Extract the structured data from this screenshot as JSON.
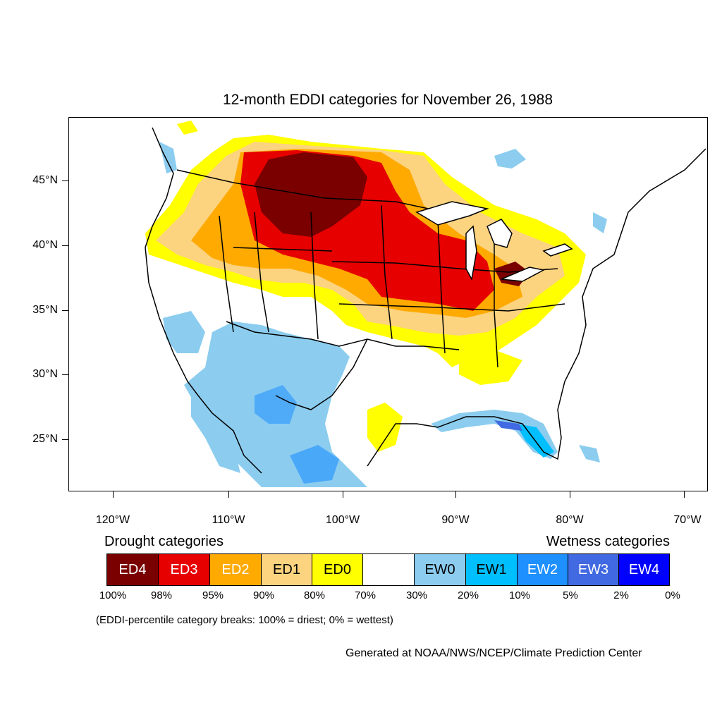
{
  "title": "12-month EDDI categories for November 26, 1988",
  "lat_labels": [
    "45°N",
    "40°N",
    "35°N",
    "30°N",
    "25°N"
  ],
  "lon_labels": [
    "120°W",
    "110°W",
    "100°W",
    "90°W",
    "80°W",
    "70°W"
  ],
  "legend": {
    "drought_title": "Drought categories",
    "wetness_title": "Wetness categories",
    "categories": [
      {
        "label": "ED4",
        "color": "#7a0000",
        "text_color": "#ffffff"
      },
      {
        "label": "ED3",
        "color": "#e60000",
        "text_color": "#ffffff"
      },
      {
        "label": "ED2",
        "color": "#ffaa00",
        "text_color": "#ffffff"
      },
      {
        "label": "ED1",
        "color": "#fcd37f",
        "text_color": "#000000"
      },
      {
        "label": "ED0",
        "color": "#ffff00",
        "text_color": "#000000"
      },
      {
        "label": "",
        "color": "#ffffff",
        "text_color": "#000000"
      },
      {
        "label": "EW0",
        "color": "#8ccdef",
        "text_color": "#000000"
      },
      {
        "label": "EW1",
        "color": "#00bfff",
        "text_color": "#000000"
      },
      {
        "label": "EW2",
        "color": "#1e90ff",
        "text_color": "#ffffff"
      },
      {
        "label": "EW3",
        "color": "#4169e1",
        "text_color": "#ffffff"
      },
      {
        "label": "EW4",
        "color": "#0000ff",
        "text_color": "#ffffff"
      }
    ],
    "breaks": [
      "100%",
      "98%",
      "95%",
      "90%",
      "80%",
      "70%",
      "30%",
      "20%",
      "10%",
      "5%",
      "2%",
      "0%"
    ]
  },
  "note": "(EDDI-percentile category breaks: 100% = driest; 0% = wettest)",
  "credit": "Generated at NOAA/NWS/NCEP/Climate Prediction Center"
}
